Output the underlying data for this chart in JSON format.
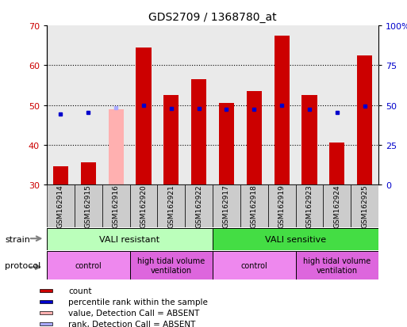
{
  "title": "GDS2709 / 1368780_at",
  "samples": [
    "GSM162914",
    "GSM162915",
    "GSM162916",
    "GSM162920",
    "GSM162921",
    "GSM162922",
    "GSM162917",
    "GSM162918",
    "GSM162919",
    "GSM162923",
    "GSM162924",
    "GSM162925"
  ],
  "count_values": [
    34.5,
    35.5,
    null,
    64.5,
    52.5,
    56.5,
    50.5,
    53.5,
    67.5,
    52.5,
    40.5,
    62.5
  ],
  "absent_value_values": [
    null,
    null,
    49.0,
    null,
    null,
    null,
    null,
    null,
    null,
    null,
    null,
    null
  ],
  "percentile_rank": [
    44.5,
    45.5,
    null,
    50.0,
    48.0,
    48.0,
    47.5,
    47.5,
    50.0,
    47.5,
    45.5,
    49.5
  ],
  "absent_rank_values": [
    null,
    null,
    48.5,
    null,
    null,
    null,
    null,
    null,
    null,
    null,
    null,
    null
  ],
  "ylim_left": [
    30,
    70
  ],
  "ylim_right": [
    0,
    100
  ],
  "y_left_ticks": [
    30,
    40,
    50,
    60,
    70
  ],
  "y_right_ticks": [
    0,
    25,
    50,
    75,
    100
  ],
  "bar_color": "#cc0000",
  "absent_bar_color": "#ffb0b0",
  "dot_color": "#0000cc",
  "absent_dot_color": "#aaaaff",
  "bar_width": 0.55,
  "baseline": 30,
  "col_bg_color": "#cccccc",
  "strain_groups": [
    {
      "label": "VALI resistant",
      "start": 0,
      "end": 6,
      "color": "#bbffbb"
    },
    {
      "label": "VALI sensitive",
      "start": 6,
      "end": 12,
      "color": "#44dd44"
    }
  ],
  "protocol_groups": [
    {
      "label": "control",
      "start": 0,
      "end": 3,
      "color": "#ee88ee"
    },
    {
      "label": "high tidal volume\nventilation",
      "start": 3,
      "end": 6,
      "color": "#dd66dd"
    },
    {
      "label": "control",
      "start": 6,
      "end": 9,
      "color": "#ee88ee"
    },
    {
      "label": "high tidal volume\nventilation",
      "start": 9,
      "end": 12,
      "color": "#dd66dd"
    }
  ],
  "legend_items": [
    {
      "label": "count",
      "color": "#cc0000"
    },
    {
      "label": "percentile rank within the sample",
      "color": "#0000cc"
    },
    {
      "label": "value, Detection Call = ABSENT",
      "color": "#ffb0b0"
    },
    {
      "label": "rank, Detection Call = ABSENT",
      "color": "#aaaaff"
    }
  ],
  "fig_bg": "#ffffff",
  "plot_bg": "#ffffff",
  "grid_color": "#000000",
  "tick_color_left": "#cc0000",
  "tick_color_right": "#0000cc",
  "title_color": "#000000",
  "title_fontsize": 10,
  "label_fontsize": 8,
  "tick_fontsize": 8
}
